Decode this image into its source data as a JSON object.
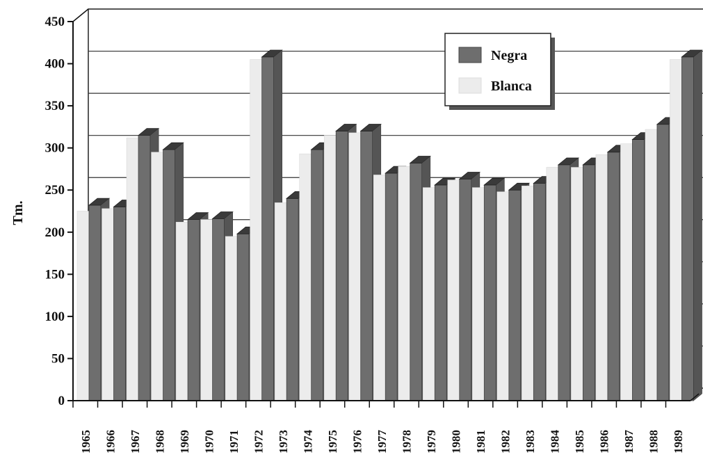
{
  "chart_data": {
    "type": "bar",
    "ylabel": "Tm.",
    "xlabel": "",
    "title": "",
    "ylim": [
      0,
      450
    ],
    "yticks": [
      0,
      50,
      100,
      150,
      200,
      250,
      300,
      350,
      400,
      450
    ],
    "grid": "horizontal",
    "legend_position": "top-right",
    "categories": [
      "1965",
      "1966",
      "1967",
      "1968",
      "1969",
      "1970",
      "1971",
      "1972",
      "1973",
      "1974",
      "1975",
      "1976",
      "1977",
      "1978",
      "1979",
      "1980",
      "1981",
      "1982",
      "1983",
      "1984",
      "1985",
      "1986",
      "1987",
      "1988",
      "1989"
    ],
    "series": [
      {
        "name": "Negra",
        "color": "#6e6e6e",
        "values": [
          232,
          230,
          315,
          298,
          215,
          216,
          198,
          408,
          240,
          298,
          320,
          320,
          270,
          282,
          256,
          263,
          256,
          250,
          258,
          280,
          280,
          295,
          310,
          328,
          408
        ]
      },
      {
        "name": "Blanca",
        "color": "#ececec",
        "values": [
          225,
          228,
          312,
          295,
          212,
          215,
          195,
          405,
          235,
          293,
          315,
          318,
          268,
          278,
          253,
          262,
          253,
          248,
          255,
          277,
          277,
          292,
          305,
          322,
          405
        ]
      }
    ]
  }
}
